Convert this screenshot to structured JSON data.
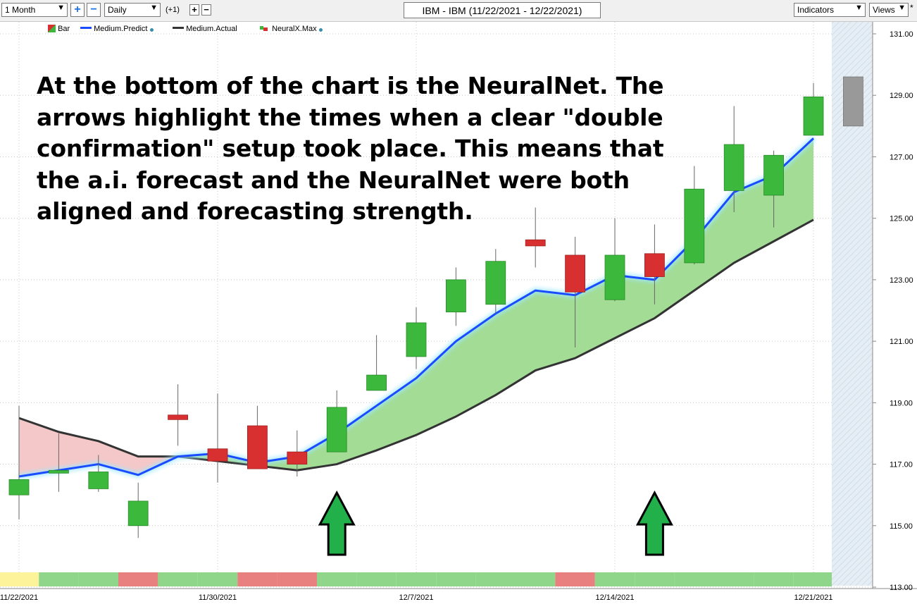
{
  "toolbar": {
    "period": "1 Month",
    "interval": "Daily",
    "offset": "(+1)",
    "title": "IBM - IBM (11/22/2021 - 12/22/2021)",
    "indicators": "Indicators",
    "views": "Views",
    "views_marker": "*",
    "plus_icon": "+",
    "minus_icon": "−"
  },
  "legend": {
    "bar": "Bar",
    "medium_predict": "Medium.Predict",
    "medium_actual": "Medium.Actual",
    "neuralx_max": "NeuralX.Max"
  },
  "annotation": "At the bottom of the chart is the NeuralNet.  The\narrows highlight the times when a clear \"double\nconfirmation\" setup took place.  This means that\nthe a.i. forecast and the NeuralNet were both\naligned and forecasting strength.",
  "colors": {
    "up": "#3cb83c",
    "down": "#d83030",
    "forecast_bar": "#999999",
    "predict_line": "#1a4cff",
    "actual_line": "#333333",
    "bull_fill": "#a3dc95",
    "bear_fill": "#f4c8c8",
    "arrow": "#22b04a",
    "nn_green": "#8fd68a",
    "nn_red": "#e88080",
    "nn_yellow": "#fdf39a"
  },
  "chart_data": {
    "type": "candlestick",
    "ylim": [
      113,
      131
    ],
    "y_ticks": [
      "131.00",
      "129.00",
      "127.00",
      "125.00",
      "123.00",
      "121.00",
      "119.00",
      "117.00",
      "115.00",
      "113.00"
    ],
    "x_ticks": [
      {
        "label": "11/22/2021",
        "index": 0
      },
      {
        "label": "11/30/2021",
        "index": 5
      },
      {
        "label": "12/7/2021",
        "index": 10
      },
      {
        "label": "12/14/2021",
        "index": 15
      },
      {
        "label": "12/21/2021",
        "index": 20
      }
    ],
    "candles": [
      {
        "date": "11/22/2021",
        "open": 116.0,
        "high": 118.9,
        "low": 115.2,
        "close": 116.5
      },
      {
        "date": "11/23/2021",
        "open": 116.8,
        "high": 118.0,
        "low": 116.1,
        "close": 116.8
      },
      {
        "date": "11/24/2021",
        "open": 116.2,
        "high": 117.3,
        "low": 116.1,
        "close": 116.75
      },
      {
        "date": "11/26/2021",
        "open": 115.0,
        "high": 116.4,
        "low": 114.6,
        "close": 115.8
      },
      {
        "date": "11/29/2021",
        "open": 118.6,
        "high": 119.6,
        "low": 117.6,
        "close": 118.45
      },
      {
        "date": "11/30/2021",
        "open": 117.5,
        "high": 119.3,
        "low": 116.4,
        "close": 117.1
      },
      {
        "date": "12/1/2021",
        "open": 118.25,
        "high": 118.9,
        "low": 116.9,
        "close": 116.85
      },
      {
        "date": "12/2/2021",
        "open": 117.4,
        "high": 118.1,
        "low": 116.6,
        "close": 117.0
      },
      {
        "date": "12/3/2021",
        "open": 117.4,
        "high": 119.4,
        "low": 117.4,
        "close": 118.85
      },
      {
        "date": "12/6/2021",
        "open": 119.4,
        "high": 121.2,
        "low": 119.4,
        "close": 119.9
      },
      {
        "date": "12/7/2021",
        "open": 120.5,
        "high": 122.1,
        "low": 120.1,
        "close": 121.6
      },
      {
        "date": "12/8/2021",
        "open": 121.95,
        "high": 123.4,
        "low": 121.5,
        "close": 123.0
      },
      {
        "date": "12/9/2021",
        "open": 122.2,
        "high": 124.0,
        "low": 121.9,
        "close": 123.6
      },
      {
        "date": "12/10/2021",
        "open": 124.3,
        "high": 125.35,
        "low": 123.4,
        "close": 124.1
      },
      {
        "date": "12/13/2021",
        "open": 123.8,
        "high": 124.4,
        "low": 120.8,
        "close": 122.6
      },
      {
        "date": "12/14/2021",
        "open": 122.35,
        "high": 125.0,
        "low": 122.3,
        "close": 123.8
      },
      {
        "date": "12/15/2021",
        "open": 123.85,
        "high": 124.8,
        "low": 122.2,
        "close": 123.1
      },
      {
        "date": "12/16/2021",
        "open": 123.55,
        "high": 126.7,
        "low": 123.5,
        "close": 125.95
      },
      {
        "date": "12/17/2021",
        "open": 125.9,
        "high": 128.65,
        "low": 125.2,
        "close": 127.4
      },
      {
        "date": "12/20/2021",
        "open": 125.75,
        "high": 127.2,
        "low": 124.7,
        "close": 127.05
      },
      {
        "date": "12/21/2021",
        "open": 127.7,
        "high": 129.4,
        "low": 127.7,
        "close": 128.95
      }
    ],
    "forecast_bar": {
      "date": "12/22/2021",
      "low": 128.0,
      "high": 129.6
    },
    "series": [
      {
        "name": "Medium.Predict",
        "values": [
          116.6,
          116.8,
          117.0,
          116.65,
          117.25,
          117.35,
          117.05,
          117.25,
          118.0,
          118.9,
          119.8,
          121.0,
          121.9,
          122.65,
          122.5,
          123.15,
          123.0,
          124.3,
          125.85,
          126.4,
          127.6
        ]
      },
      {
        "name": "Medium.Actual",
        "values": [
          118.5,
          118.05,
          117.75,
          117.25,
          117.25,
          117.1,
          116.95,
          116.8,
          117.0,
          117.45,
          117.95,
          118.55,
          119.25,
          120.05,
          120.45,
          121.1,
          121.75,
          122.65,
          123.55,
          124.25,
          124.95
        ]
      }
    ],
    "neuralnet": [
      "yellow",
      "green",
      "green",
      "red",
      "green",
      "green",
      "red",
      "red",
      "green",
      "green",
      "green",
      "green",
      "green",
      "green",
      "red",
      "green",
      "green",
      "green",
      "green",
      "green",
      "green"
    ],
    "arrows": [
      8,
      16
    ]
  }
}
